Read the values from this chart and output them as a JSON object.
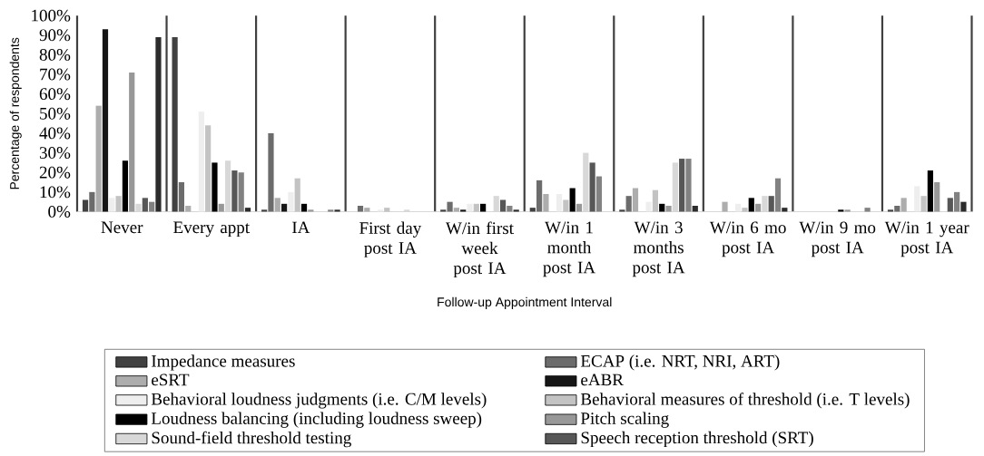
{
  "chart_data": {
    "type": "bar",
    "xlabel": "Follow-up Appointment Interval",
    "ylabel": "Percentage of respondents",
    "categories": [
      "Never",
      "Every appt",
      "IA",
      "First day post IA",
      "W/in first week post IA",
      "W/in 1 month post IA",
      "W/in 3 months post IA",
      "W/in 6 mo post IA",
      "W/in 9 mo post IA",
      "W/in 1 year post IA"
    ],
    "ylim": [
      0,
      100
    ],
    "yticks": [
      {
        "value": 0,
        "label": "0%"
      },
      {
        "value": 10,
        "label": "10%"
      },
      {
        "value": 20,
        "label": "20%"
      },
      {
        "value": 30,
        "label": "30%"
      },
      {
        "value": 40,
        "label": "40%"
      },
      {
        "value": 50,
        "label": "50%"
      },
      {
        "value": 60,
        "label": "60%"
      },
      {
        "value": 70,
        "label": "70%"
      },
      {
        "value": 80,
        "label": "80%"
      },
      {
        "value": 90,
        "label": "90%"
      },
      {
        "value": 100,
        "label": "100%"
      }
    ],
    "grid": "x",
    "legend": "bottom",
    "series": [
      {
        "name": "Impedance measures",
        "color": "#414141",
        "values": [
          6,
          89,
          1,
          0,
          1,
          2,
          1,
          0,
          0,
          1
        ]
      },
      {
        "name": "ECAP (i.e. NRT, NRI, ART)",
        "color": "#6c6c6c",
        "values": [
          10,
          15,
          40,
          3,
          5,
          16,
          8,
          0,
          0,
          3
        ]
      },
      {
        "name": "eSRT",
        "color": "#adadad",
        "values": [
          54,
          3,
          7,
          2,
          2,
          9,
          12,
          5,
          0,
          7
        ]
      },
      {
        "name": "eABR",
        "color": "#161616",
        "values": [
          93,
          0,
          4,
          0,
          1,
          0,
          0,
          0,
          0,
          0
        ]
      },
      {
        "name": "Behavioral loudness judgments (i.e. C/M levels)",
        "color": "#eeeeee",
        "values": [
          7,
          51,
          10,
          1,
          4,
          9,
          5,
          4,
          0,
          13
        ]
      },
      {
        "name": "Behavioral measures of threshold (i.e. T levels)",
        "color": "#c3c3c3",
        "values": [
          8,
          44,
          17,
          2,
          4,
          6,
          11,
          2,
          0,
          8
        ]
      },
      {
        "name": "Loudness balancing (including loudness sweep)",
        "color": "#000000",
        "values": [
          26,
          25,
          4,
          0,
          4,
          12,
          4,
          7,
          1,
          21
        ]
      },
      {
        "name": "Pitch scaling",
        "color": "#989898",
        "values": [
          71,
          4,
          1,
          0,
          0,
          4,
          3,
          4,
          1,
          15
        ]
      },
      {
        "name": "Sound-field threshold testing",
        "color": "#d8d8d8",
        "values": [
          4,
          26,
          0,
          1,
          8,
          30,
          25,
          8,
          0,
          0
        ]
      },
      {
        "name": "Speech reception threshold (SRT)",
        "color": "#575757",
        "values": [
          7,
          21,
          0,
          0,
          6,
          25,
          27,
          8,
          0,
          7
        ]
      },
      {
        "color": "#828282",
        "values": [
          5,
          20,
          1,
          0,
          3,
          18,
          27,
          17,
          2,
          10
        ]
      },
      {
        "color": "#2c2c2c",
        "values": [
          89,
          2,
          1,
          0,
          1,
          0,
          3,
          2,
          0,
          5
        ]
      }
    ]
  }
}
